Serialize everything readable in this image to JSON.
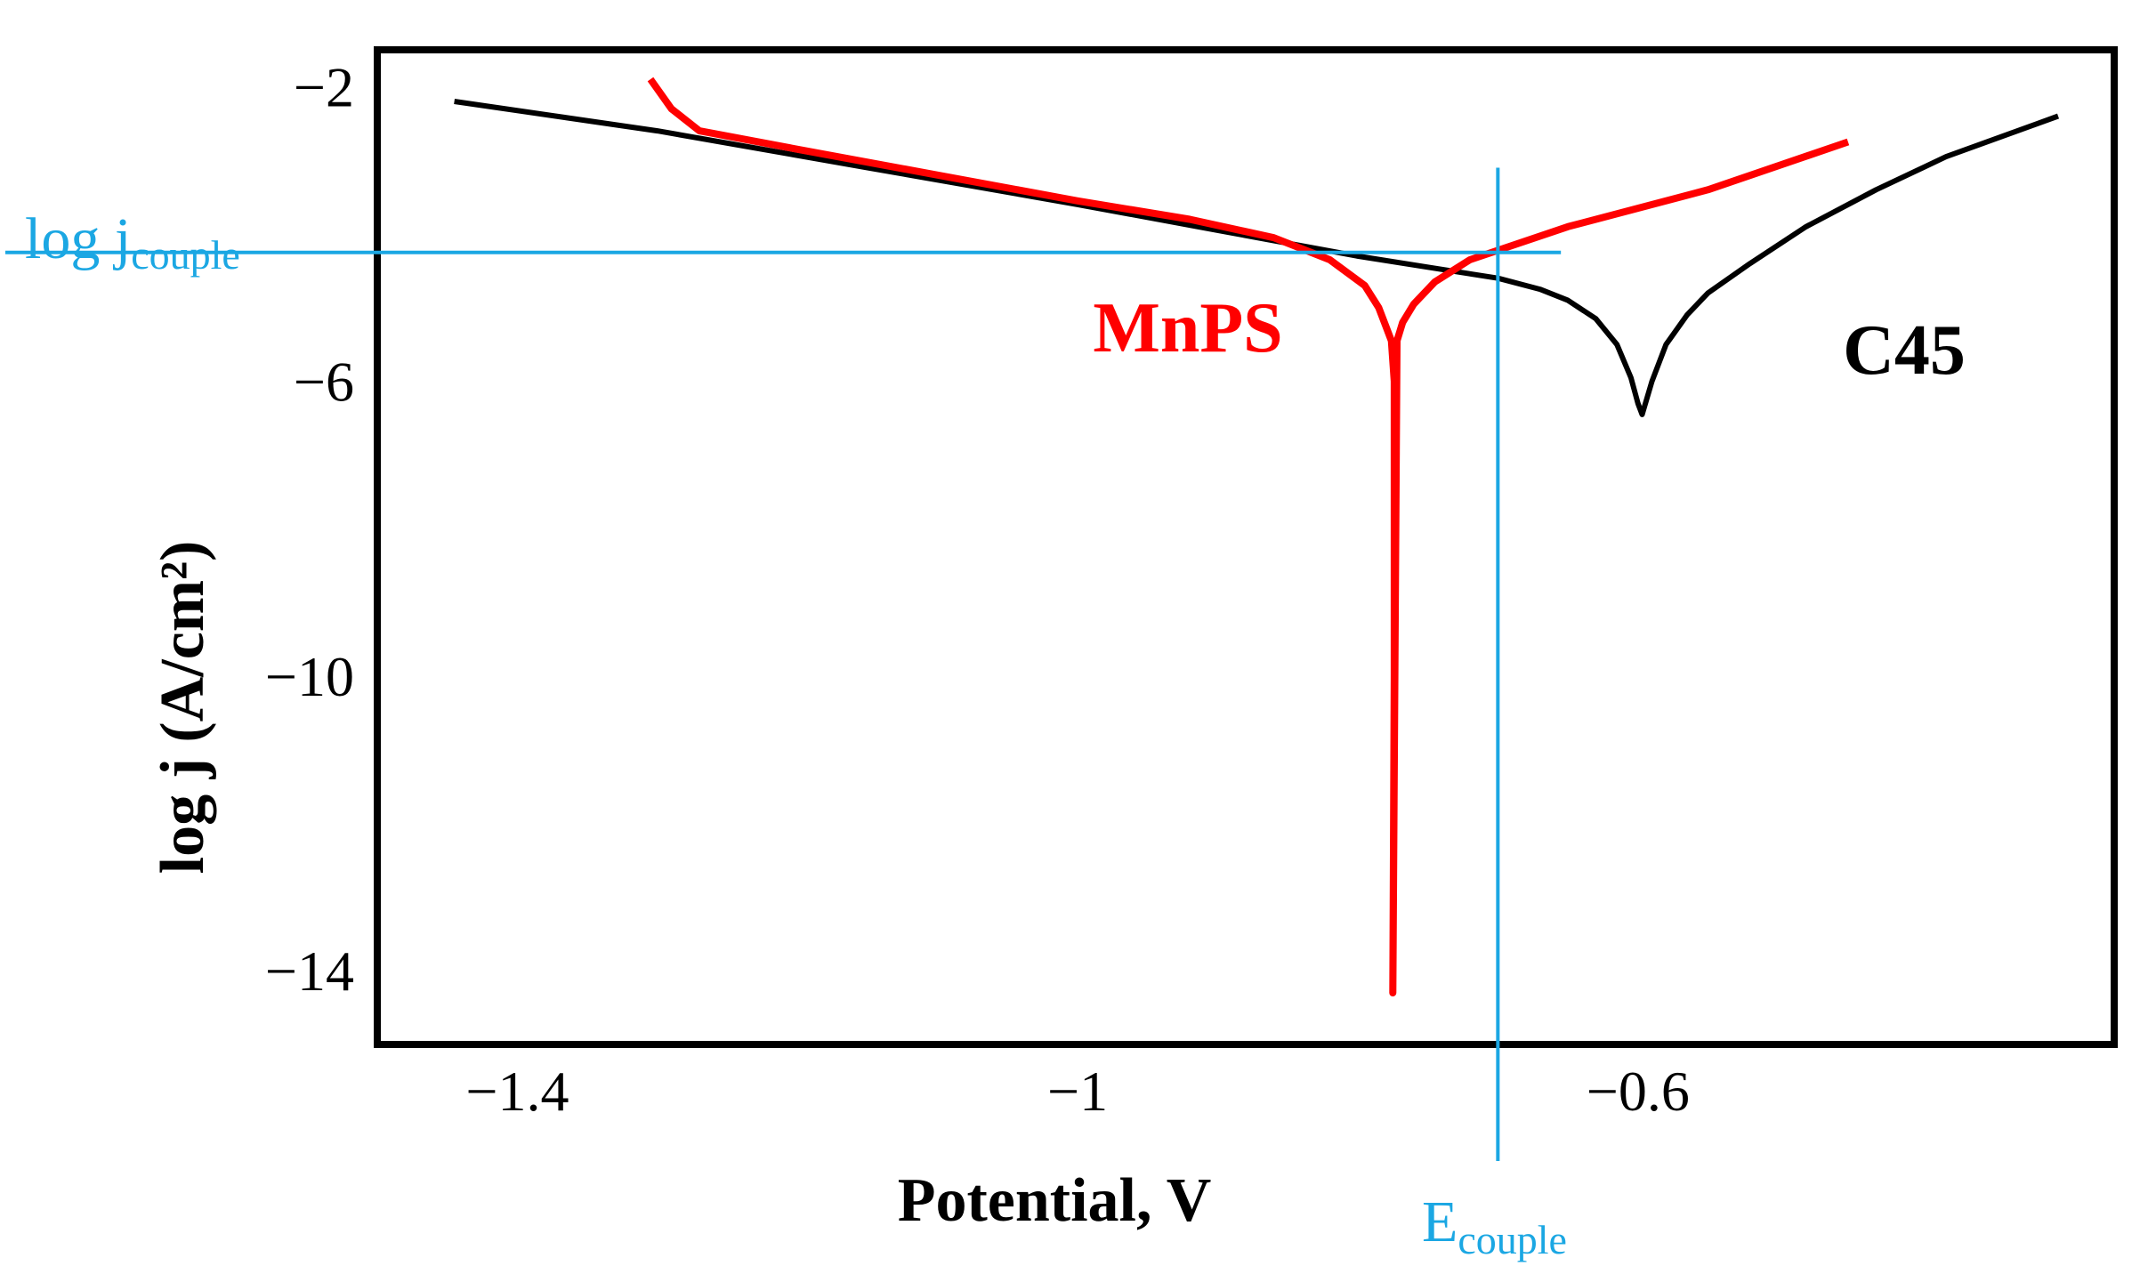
{
  "chart_data": {
    "type": "line",
    "title": "",
    "xlabel": "Potential, V",
    "ylabel": "log j (A/cm²)",
    "xlim": [
      -1.5,
      -0.26
    ],
    "ylim": [
      -15,
      -1.5
    ],
    "x_ticks": [
      -1.4,
      -1,
      -0.6
    ],
    "x_tick_labels": [
      "−1.4",
      "−1",
      "−0.6"
    ],
    "y_ticks": [
      -2,
      -6,
      -10,
      -14
    ],
    "y_tick_labels": [
      "−2",
      "−6",
      "−10",
      "−14"
    ],
    "grid": false,
    "series": [
      {
        "name": "C45",
        "color": "#000000",
        "x": [
          -1.445,
          -1.3,
          -1.15,
          -1.0,
          -0.9,
          -0.8,
          -0.75,
          -0.7,
          -0.67,
          -0.65,
          -0.63,
          -0.615,
          -0.605,
          -0.6,
          -0.597,
          -0.59,
          -0.58,
          -0.565,
          -0.55,
          -0.52,
          -0.48,
          -0.43,
          -0.38,
          -0.3
        ],
        "y": [
          -2.2,
          -2.6,
          -3.1,
          -3.6,
          -3.95,
          -4.3,
          -4.45,
          -4.6,
          -4.75,
          -4.9,
          -5.15,
          -5.5,
          -5.95,
          -6.3,
          -6.45,
          -6.0,
          -5.5,
          -5.1,
          -4.8,
          -4.4,
          -3.9,
          -3.4,
          -2.95,
          -2.4
        ]
      },
      {
        "name": "MnPS",
        "color": "#ff0000",
        "x": [
          -1.305,
          -1.29,
          -1.27,
          -1.2,
          -1.1,
          -1.0,
          -0.92,
          -0.86,
          -0.82,
          -0.795,
          -0.785,
          -0.78,
          -0.776,
          -0.774,
          -0.774,
          -0.775,
          -0.772,
          -0.768,
          -0.76,
          -0.745,
          -0.72,
          -0.65,
          -0.55,
          -0.45
        ],
        "y": [
          -1.9,
          -2.3,
          -2.6,
          -2.85,
          -3.2,
          -3.55,
          -3.8,
          -4.05,
          -4.35,
          -4.7,
          -5.0,
          -5.25,
          -5.45,
          -6.0,
          -10.0,
          -14.3,
          -5.45,
          -5.2,
          -4.95,
          -4.65,
          -4.35,
          -3.9,
          -3.4,
          -2.75
        ]
      }
    ],
    "annotations": {
      "log_j_couple": {
        "main": "log j",
        "sub": "couple",
        "value": -4.25
      },
      "e_couple": {
        "main": "E",
        "sub": "couple",
        "value": -0.7
      }
    }
  }
}
